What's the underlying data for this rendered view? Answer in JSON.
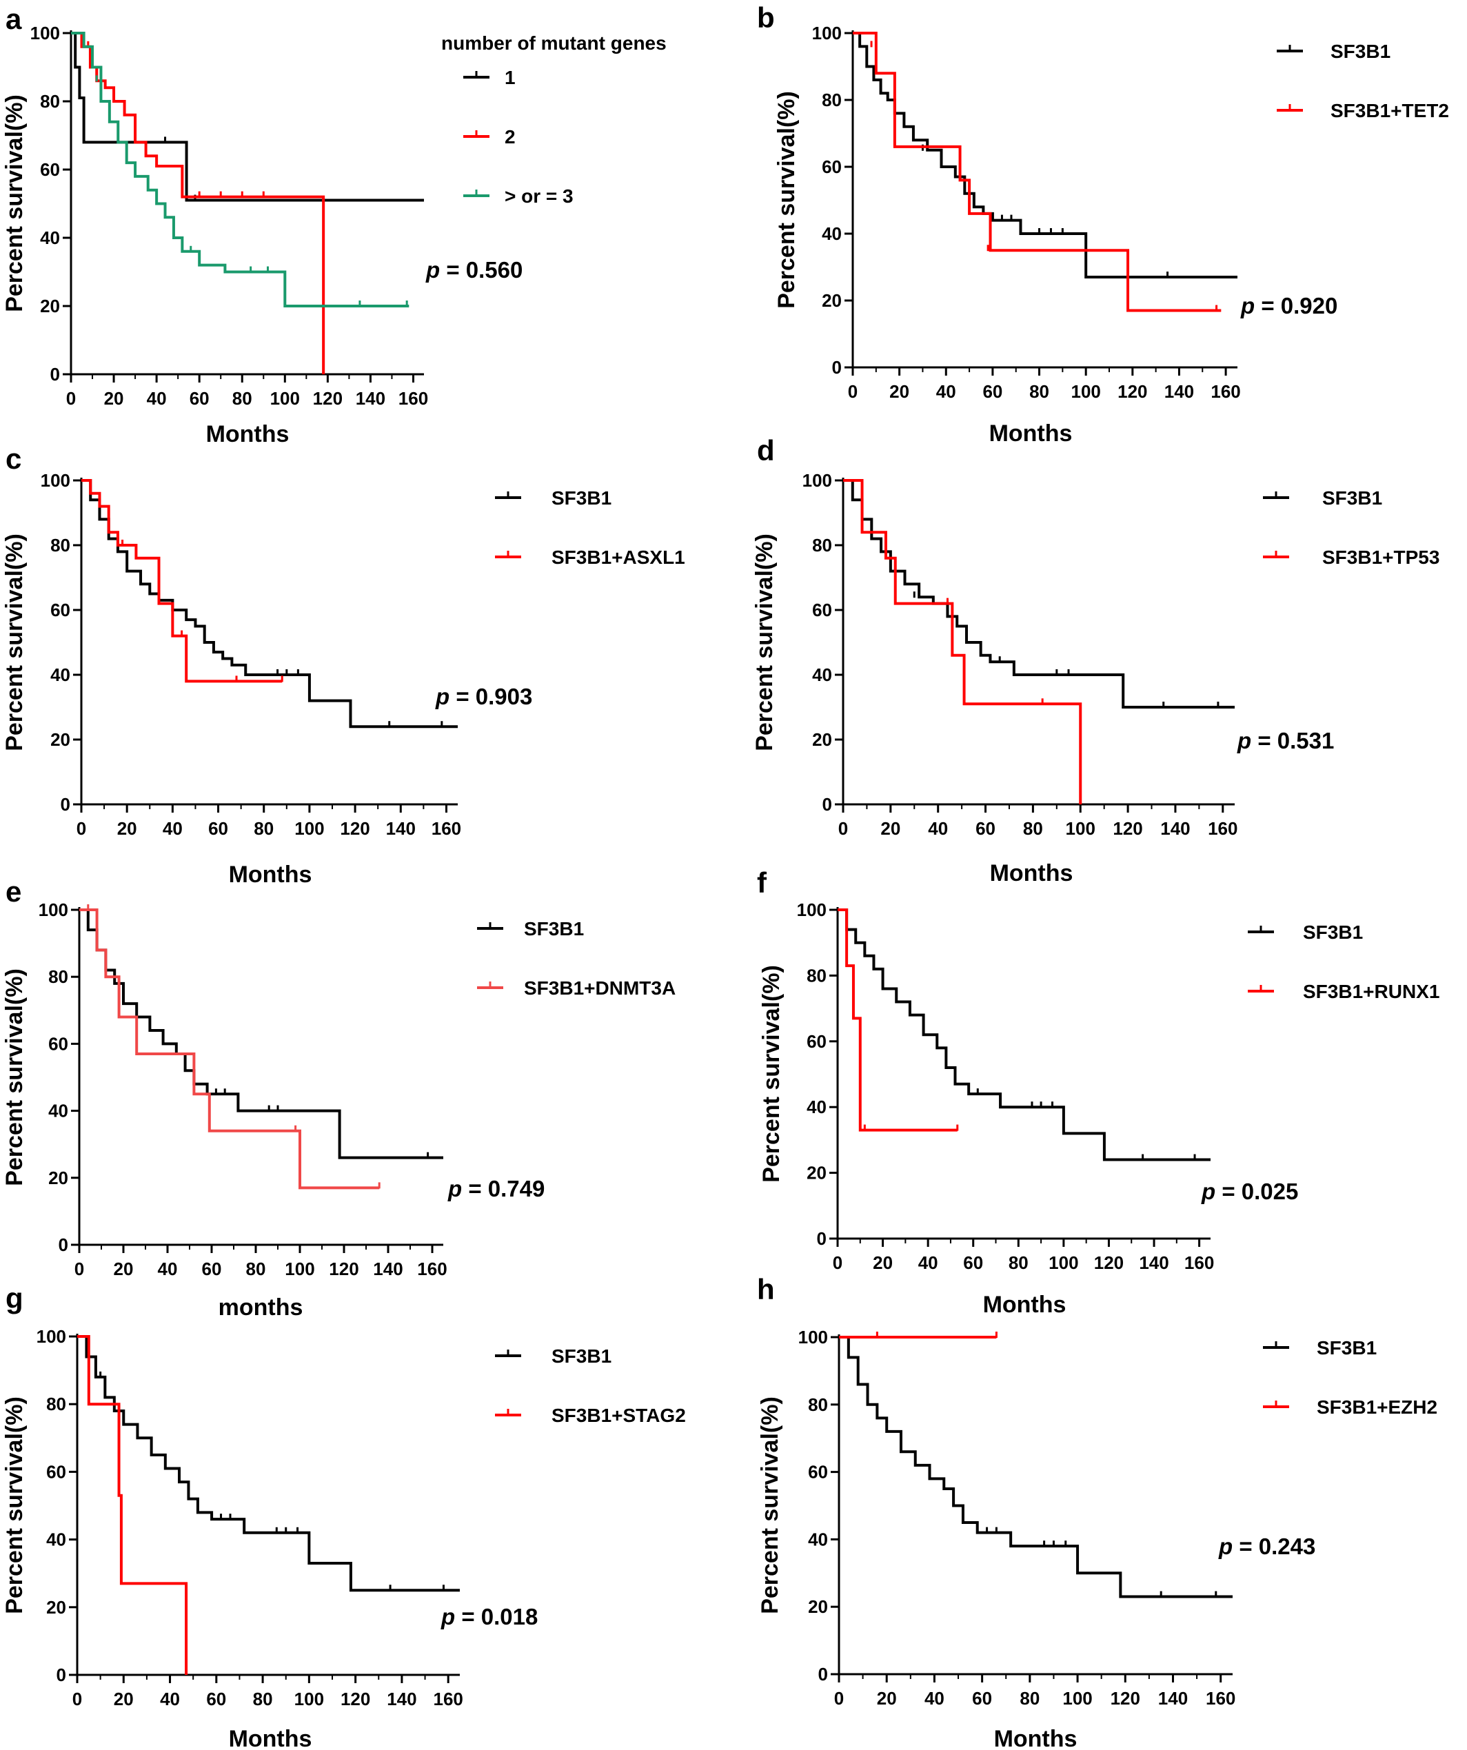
{
  "colors": {
    "black": "#000000",
    "red": "#ff0000",
    "green": "#1a9a6c",
    "pink": "#f04848"
  },
  "chart_data": [
    {
      "panel": "a",
      "type": "line",
      "step": true,
      "ylabel": "Percent survival(%)",
      "xlabel": "Months",
      "xlim": [
        0,
        165
      ],
      "ylim": [
        0,
        100
      ],
      "xticks": [
        0,
        20,
        40,
        60,
        80,
        100,
        120,
        140,
        160
      ],
      "yticks": [
        0,
        20,
        40,
        60,
        80,
        100
      ],
      "legend_title": "number  of mutant genes",
      "p_value": "= 0.560",
      "series": [
        {
          "name": "1",
          "color": "#000000",
          "x": [
            0,
            2,
            4,
            6,
            54,
            165
          ],
          "y": [
            100,
            90,
            81,
            68,
            51,
            51
          ],
          "censor_x": [
            30,
            44,
            58
          ],
          "censor_y": [
            68,
            68,
            51
          ]
        },
        {
          "name": "2",
          "color": "#ff0000",
          "x": [
            0,
            5,
            9,
            12,
            16,
            20,
            25,
            30,
            35,
            40,
            52,
            118,
            118
          ],
          "y": [
            100,
            96,
            90,
            86,
            84,
            80,
            76,
            68,
            64,
            61,
            52,
            52,
            0
          ],
          "censor_x": [
            8,
            60,
            70,
            80,
            90
          ],
          "censor_y": [
            96,
            52,
            52,
            52,
            52
          ]
        },
        {
          "name": "> or = 3",
          "color": "#1a9a6c",
          "x": [
            0,
            6,
            10,
            14,
            18,
            22,
            26,
            30,
            36,
            40,
            44,
            48,
            52,
            60,
            72,
            100,
            158
          ],
          "y": [
            100,
            96,
            90,
            80,
            74,
            68,
            62,
            58,
            54,
            50,
            46,
            40,
            36,
            32,
            30,
            20,
            20
          ],
          "censor_x": [
            12,
            56,
            84,
            92,
            135,
            157
          ],
          "censor_y": [
            86,
            36,
            30,
            30,
            20,
            20
          ]
        }
      ]
    },
    {
      "panel": "b",
      "type": "line",
      "step": true,
      "ylabel": "Percent survival(%)",
      "xlabel": "Months",
      "xlim": [
        0,
        165
      ],
      "ylim": [
        0,
        100
      ],
      "xticks": [
        0,
        20,
        40,
        60,
        80,
        100,
        120,
        140,
        160
      ],
      "yticks": [
        0,
        20,
        40,
        60,
        80,
        100
      ],
      "p_value": "= 0.920",
      "series": [
        {
          "name": "SF3B1",
          "color": "#000000",
          "x": [
            0,
            3,
            6,
            9,
            12,
            15,
            18,
            22,
            26,
            32,
            38,
            44,
            48,
            52,
            56,
            60,
            72,
            100,
            165
          ],
          "y": [
            100,
            96,
            90,
            86,
            82,
            80,
            76,
            72,
            68,
            65,
            60,
            57,
            52,
            48,
            46,
            44,
            40,
            27,
            27
          ],
          "censor_x": [
            30,
            64,
            68,
            80,
            85,
            90,
            135
          ],
          "censor_y": [
            65,
            44,
            44,
            40,
            40,
            40,
            27
          ]
        },
        {
          "name": "SF3B1+TET2",
          "color": "#ff0000",
          "x": [
            0,
            10,
            14,
            18,
            46,
            50,
            59,
            118,
            158
          ],
          "y": [
            100,
            88,
            88,
            66,
            56,
            46,
            35,
            17,
            17
          ],
          "censor_x": [
            8,
            58,
            156
          ],
          "censor_y": [
            96,
            35,
            17
          ]
        }
      ]
    },
    {
      "panel": "c",
      "type": "line",
      "step": true,
      "ylabel": "Percent survival(%)",
      "xlabel": "Months",
      "xlim": [
        0,
        165
      ],
      "ylim": [
        0,
        100
      ],
      "xticks": [
        0,
        20,
        40,
        60,
        80,
        100,
        120,
        140,
        160
      ],
      "yticks": [
        0,
        20,
        40,
        60,
        80,
        100
      ],
      "p_value": "= 0.903",
      "series": [
        {
          "name": "SF3B1",
          "color": "#000000",
          "x": [
            0,
            4,
            8,
            12,
            16,
            20,
            26,
            30,
            34,
            40,
            46,
            50,
            54,
            58,
            62,
            66,
            72,
            100,
            118,
            165
          ],
          "y": [
            100,
            94,
            88,
            82,
            78,
            72,
            68,
            65,
            63,
            60,
            57,
            55,
            50,
            47,
            45,
            43,
            40,
            32,
            24,
            24
          ],
          "censor_x": [
            86,
            90,
            95,
            135,
            158
          ],
          "censor_y": [
            40,
            40,
            40,
            24,
            24
          ]
        },
        {
          "name": "SF3B1+ASXL1",
          "color": "#ff0000",
          "x": [
            0,
            4,
            8,
            12,
            16,
            24,
            34,
            40,
            46,
            88
          ],
          "y": [
            100,
            96,
            92,
            84,
            80,
            76,
            62,
            52,
            38,
            38
          ],
          "censor_x": [
            18,
            44,
            68,
            88
          ],
          "censor_y": [
            80,
            52,
            38,
            38
          ]
        }
      ]
    },
    {
      "panel": "d",
      "type": "line",
      "step": true,
      "ylabel": "Percent survival(%)",
      "xlabel": "Months",
      "xlim": [
        0,
        165
      ],
      "ylim": [
        0,
        100
      ],
      "xticks": [
        0,
        20,
        40,
        60,
        80,
        100,
        120,
        140,
        160
      ],
      "yticks": [
        0,
        20,
        40,
        60,
        80,
        100
      ],
      "p_value": "= 0.531",
      "series": [
        {
          "name": "SF3B1",
          "color": "#000000",
          "x": [
            0,
            4,
            8,
            12,
            16,
            20,
            26,
            32,
            38,
            44,
            48,
            52,
            58,
            62,
            72,
            118,
            165
          ],
          "y": [
            100,
            94,
            88,
            82,
            78,
            72,
            68,
            64,
            62,
            58,
            55,
            50,
            46,
            44,
            40,
            30,
            30
          ],
          "censor_x": [
            30,
            66,
            90,
            95,
            135,
            158
          ],
          "censor_y": [
            64,
            44,
            40,
            40,
            30,
            30
          ]
        },
        {
          "name": "SF3B1+TP53",
          "color": "#ff0000",
          "x": [
            0,
            8,
            12,
            18,
            22,
            46,
            51,
            100,
            100
          ],
          "y": [
            100,
            84,
            84,
            76,
            62,
            46,
            31,
            31,
            0
          ],
          "censor_x": [
            44,
            84
          ],
          "censor_y": [
            62,
            31
          ]
        }
      ]
    },
    {
      "panel": "e",
      "type": "line",
      "step": true,
      "ylabel": "Percent survival(%)",
      "xlabel": "months",
      "xlim": [
        0,
        165
      ],
      "ylim": [
        0,
        100
      ],
      "xticks": [
        0,
        20,
        40,
        60,
        80,
        100,
        120,
        140,
        160
      ],
      "yticks": [
        0,
        20,
        40,
        60,
        80,
        100
      ],
      "p_value": "= 0.749",
      "series": [
        {
          "name": "SF3B1",
          "color": "#000000",
          "x": [
            0,
            4,
            8,
            12,
            16,
            20,
            26,
            32,
            38,
            44,
            48,
            52,
            58,
            72,
            118,
            165
          ],
          "y": [
            100,
            94,
            88,
            82,
            78,
            72,
            68,
            64,
            60,
            57,
            52,
            48,
            45,
            40,
            26,
            26
          ],
          "censor_x": [
            62,
            66,
            86,
            90,
            158
          ],
          "censor_y": [
            45,
            45,
            40,
            40,
            26
          ]
        },
        {
          "name": "SF3B1+DNMT3A",
          "color": "#f04848",
          "x": [
            0,
            8,
            12,
            18,
            26,
            52,
            59,
            100,
            136
          ],
          "y": [
            100,
            88,
            80,
            68,
            57,
            45,
            34,
            17,
            17
          ],
          "censor_x": [
            4,
            52,
            98,
            136
          ],
          "censor_y": [
            100,
            45,
            34,
            17
          ]
        }
      ]
    },
    {
      "panel": "f",
      "type": "line",
      "step": true,
      "ylabel": "Percent survival(%)",
      "xlabel": "Months",
      "xlim": [
        0,
        165
      ],
      "ylim": [
        0,
        100
      ],
      "xticks": [
        0,
        20,
        40,
        60,
        80,
        100,
        120,
        140,
        160
      ],
      "yticks": [
        0,
        20,
        40,
        60,
        80,
        100
      ],
      "p_value": "= 0.025",
      "series": [
        {
          "name": "SF3B1",
          "color": "#000000",
          "x": [
            0,
            4,
            8,
            12,
            16,
            20,
            26,
            32,
            38,
            44,
            48,
            52,
            58,
            72,
            100,
            118,
            165
          ],
          "y": [
            100,
            94,
            90,
            86,
            82,
            76,
            72,
            68,
            62,
            58,
            52,
            47,
            44,
            40,
            32,
            24,
            24
          ],
          "censor_x": [
            62,
            86,
            90,
            95,
            135,
            158
          ],
          "censor_y": [
            44,
            40,
            40,
            40,
            24,
            24
          ]
        },
        {
          "name": "SF3B1+RUNX1",
          "color": "#ff0000",
          "x": [
            0,
            4,
            7,
            10,
            53
          ],
          "y": [
            100,
            83,
            67,
            33,
            33
          ],
          "censor_x": [
            12,
            53
          ],
          "censor_y": [
            33,
            33
          ]
        }
      ]
    },
    {
      "panel": "g",
      "type": "line",
      "step": true,
      "ylabel": "Percent survival(%)",
      "xlabel": "Months",
      "xlim": [
        0,
        165
      ],
      "ylim": [
        0,
        100
      ],
      "xticks": [
        0,
        20,
        40,
        60,
        80,
        100,
        120,
        140,
        160
      ],
      "yticks": [
        0,
        20,
        40,
        60,
        80,
        100
      ],
      "p_value": "= 0.018",
      "series": [
        {
          "name": "SF3B1",
          "color": "#000000",
          "x": [
            0,
            4,
            8,
            12,
            16,
            20,
            26,
            32,
            38,
            44,
            48,
            52,
            58,
            72,
            100,
            118,
            165
          ],
          "y": [
            100,
            94,
            88,
            82,
            78,
            74,
            70,
            65,
            61,
            57,
            52,
            48,
            46,
            42,
            33,
            25,
            25
          ],
          "censor_x": [
            10,
            62,
            66,
            86,
            90,
            95,
            135,
            158
          ],
          "censor_y": [
            88,
            46,
            46,
            42,
            42,
            42,
            25,
            25
          ]
        },
        {
          "name": "SF3B1+STAG2",
          "color": "#ff0000",
          "x": [
            0,
            5,
            18,
            19,
            47,
            47
          ],
          "y": [
            100,
            80,
            53,
            27,
            27,
            0
          ],
          "censor_x": [],
          "censor_y": []
        }
      ]
    },
    {
      "panel": "h",
      "type": "line",
      "step": true,
      "ylabel": "Percent survival(%)",
      "xlabel": "Months",
      "xlim": [
        0,
        165
      ],
      "ylim": [
        0,
        100
      ],
      "xticks": [
        0,
        20,
        40,
        60,
        80,
        100,
        120,
        140,
        160
      ],
      "yticks": [
        0,
        20,
        40,
        60,
        80,
        100
      ],
      "p_value": "= 0.243",
      "series": [
        {
          "name": "SF3B1",
          "color": "#000000",
          "x": [
            0,
            4,
            8,
            12,
            16,
            20,
            26,
            32,
            38,
            44,
            48,
            52,
            58,
            72,
            100,
            118,
            165
          ],
          "y": [
            100,
            94,
            86,
            80,
            76,
            72,
            66,
            62,
            58,
            55,
            50,
            45,
            42,
            38,
            30,
            23,
            23
          ],
          "censor_x": [
            62,
            66,
            86,
            90,
            95,
            135,
            158
          ],
          "censor_y": [
            42,
            42,
            38,
            38,
            38,
            23,
            23
          ]
        },
        {
          "name": "SF3B1+EZH2",
          "color": "#ff0000",
          "x": [
            0,
            66
          ],
          "y": [
            100,
            100
          ],
          "censor_x": [
            16,
            66
          ],
          "censor_y": [
            100,
            100
          ]
        }
      ]
    }
  ]
}
